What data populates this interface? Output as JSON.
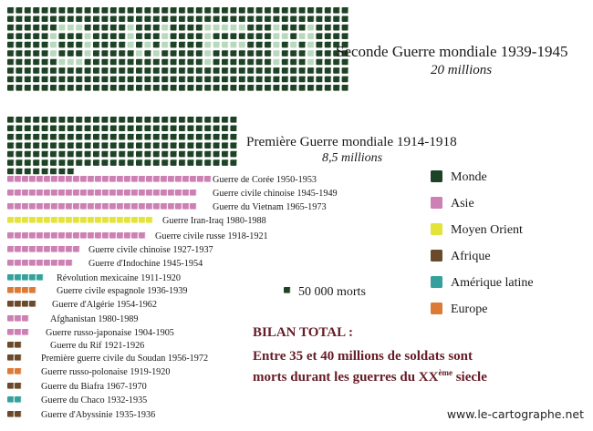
{
  "colors": {
    "Monde": "#1e4226",
    "Monde_light": "#b9d8bd",
    "Asie": "#cc80b3",
    "Moyen Orient": "#e3e33b",
    "Afrique": "#6b4a2c",
    "Amérique latine": "#35a19c",
    "Europe": "#dc7b36",
    "bilan_text": "#661b25"
  },
  "chart_data": {
    "type": "pictogram",
    "unit_label": "50 000 morts",
    "unit_value": 50000,
    "world_wars": [
      {
        "name": "Seconde Guerre mondiale",
        "years": "1939-1945",
        "deaths_label": "20 millions",
        "deaths": 20000000,
        "region": "Monde"
      },
      {
        "name": "Première Guerre mondiale",
        "years": "1914-1918",
        "deaths_label": "8,5 millions",
        "deaths": 8500000,
        "region": "Monde"
      }
    ],
    "wars": [
      {
        "name": "Guerre de Corée",
        "years": "1950-1953",
        "region": "Asie",
        "units": 28
      },
      {
        "name": "Guerre civile chinoise",
        "years": "1945-1949",
        "region": "Asie",
        "units": 26
      },
      {
        "name": "Guerre du Vietnam",
        "years": "1965-1973",
        "region": "Asie",
        "units": 26
      },
      {
        "name": "Guerre Iran-Iraq",
        "years": "1980-1988",
        "region": "Moyen Orient",
        "units": 20
      },
      {
        "name": "Guerre civile russe",
        "years": "1918-1921",
        "region": "Asie",
        "units": 19
      },
      {
        "name": "Guerre civile chinoise",
        "years": "1927-1937",
        "region": "Asie",
        "units": 10
      },
      {
        "name": "Guerre d'Indochine",
        "years": "1945-1954",
        "region": "Asie",
        "units": 9
      },
      {
        "name": "Révolution mexicaine",
        "years": "1911-1920",
        "region": "Amérique latine",
        "units": 5
      },
      {
        "name": "Guerre civile espagnole",
        "years": "1936-1939",
        "region": "Europe",
        "units": 4
      },
      {
        "name": "Guerre d'Algérie",
        "years": "1954-1962",
        "region": "Afrique",
        "units": 4
      },
      {
        "name": "Afghanistan",
        "years": "1980-1989",
        "region": "Asie",
        "units": 3
      },
      {
        "name": "Guerre russo-japonaise",
        "years": "1904-1905",
        "region": "Asie",
        "units": 3
      },
      {
        "name": "Guerre du Rif",
        "years": "1921-1926",
        "region": "Afrique",
        "units": 2
      },
      {
        "name": "Première guerre civile du Soudan",
        "years": "1956-1972",
        "region": "Afrique",
        "units": 2
      },
      {
        "name": "Guerre russo-polonaise",
        "years": "1919-1920",
        "region": "Europe",
        "units": 2
      },
      {
        "name": "Guerre du Biafra",
        "years": "1967-1970",
        "region": "Afrique",
        "units": 2
      },
      {
        "name": "Guerre du Chaco",
        "years": "1932-1935",
        "region": "Amérique latine",
        "units": 2
      },
      {
        "name": "Guerre d'Abyssinie",
        "years": "1935-1936",
        "region": "Afrique",
        "units": 2
      }
    ],
    "legend": [
      "Monde",
      "Asie",
      "Moyen Orient",
      "Afrique",
      "Amérique latine",
      "Europe"
    ],
    "legend_placement": "right"
  },
  "bilan": {
    "title": "BILAN TOTAL :",
    "line1": "Entre 35 et 40 millions de soldats sont",
    "line2_pre": "morts durant les guerres du XX",
    "line2_sup": "ème",
    "line2_post": " siecle"
  },
  "credit": "www.le-cartographe.net"
}
